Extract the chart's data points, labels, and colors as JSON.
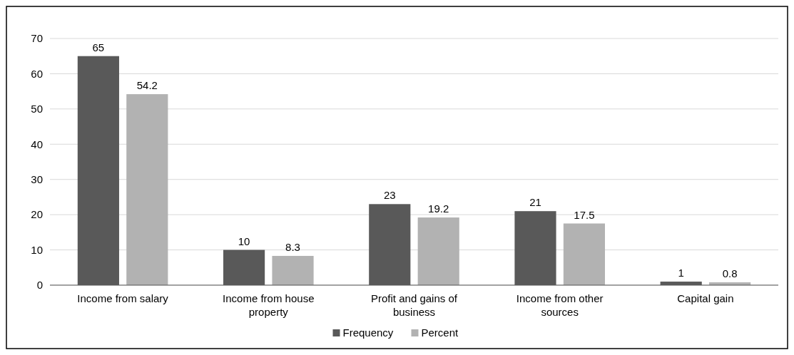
{
  "chart_data": {
    "type": "bar",
    "categories": [
      "Income from salary",
      "Income from house property",
      "Profit and gains of business",
      "Income from other sources",
      "Capital gain"
    ],
    "series": [
      {
        "name": "Frequency",
        "color": "#595959",
        "values": [
          65,
          10,
          23,
          21,
          1
        ]
      },
      {
        "name": "Percent",
        "color": "#b2b2b2",
        "values": [
          54.2,
          8.3,
          19.2,
          17.5,
          0.8
        ]
      }
    ],
    "ylim": [
      0,
      70
    ],
    "yticks": [
      0,
      10,
      20,
      30,
      40,
      50,
      60,
      70
    ],
    "grid": "y",
    "legend": "bottom",
    "data_labels": true
  }
}
